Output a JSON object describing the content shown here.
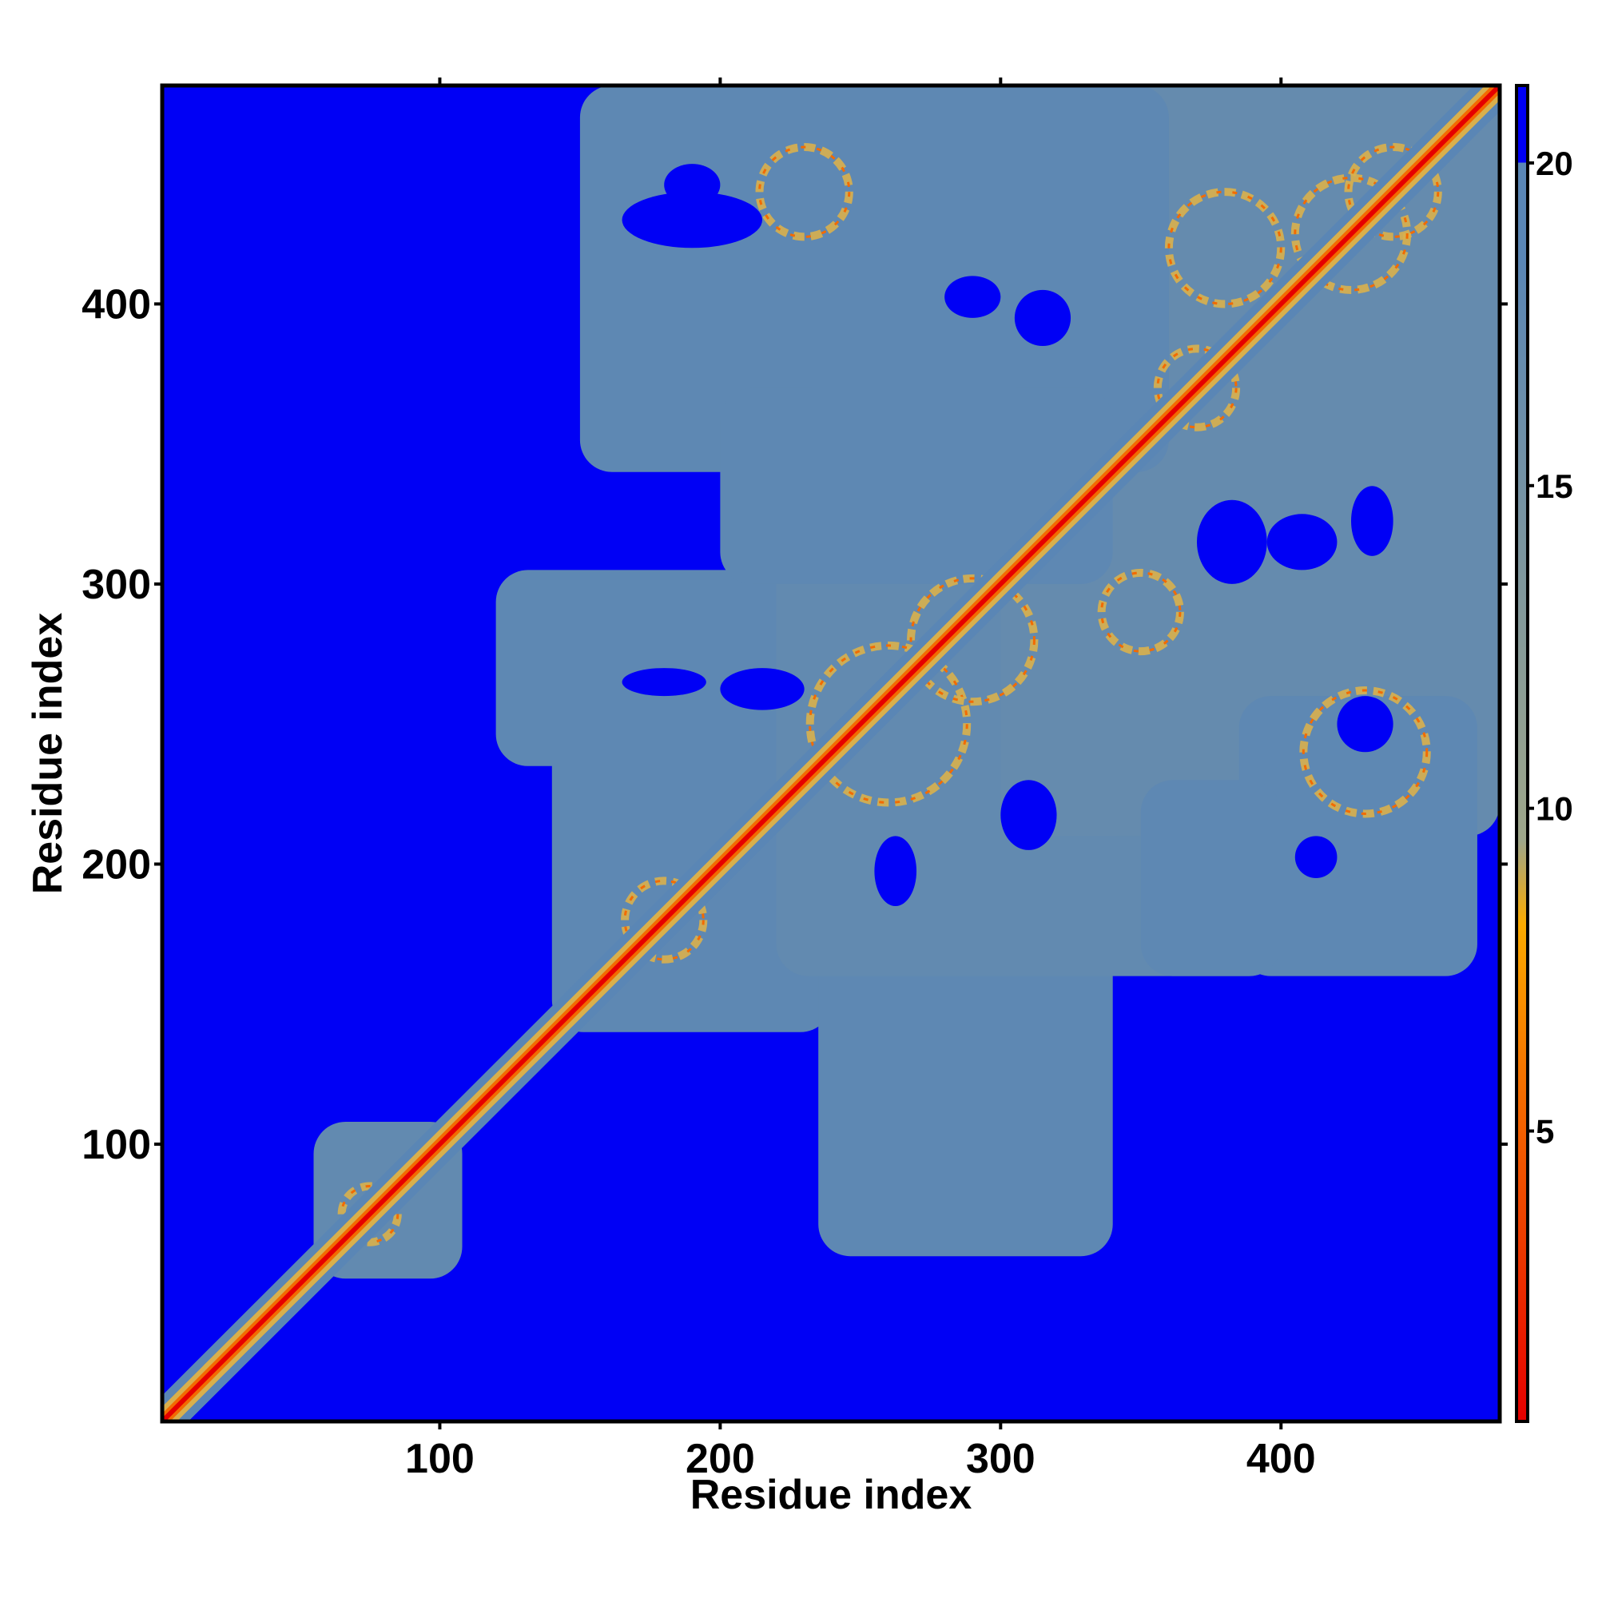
{
  "chart_data": {
    "type": "heatmap",
    "title": "",
    "xlabel": "Residue index",
    "ylabel": "Residue index",
    "xlim": [
      1,
      478
    ],
    "ylim": [
      1,
      478
    ],
    "x_ticks": [
      100,
      200,
      300,
      400
    ],
    "y_ticks": [
      100,
      200,
      300,
      400
    ],
    "colorbar": {
      "range": [
        0.5,
        21.2
      ],
      "ticks": [
        5,
        10,
        15,
        20
      ],
      "stops": [
        {
          "value": 0.5,
          "color": "#e50000"
        },
        {
          "value": 5.5,
          "color": "#f36a00"
        },
        {
          "value": 8.2,
          "color": "#fbab00"
        },
        {
          "value": 9.5,
          "color": "#9ea68a"
        },
        {
          "value": 18.5,
          "color": "#5a86b5"
        },
        {
          "value": 20.0,
          "color": "#5a86b5"
        },
        {
          "value": 20.01,
          "color": "#0000f5"
        },
        {
          "value": 21.2,
          "color": "#0000f5"
        }
      ]
    },
    "background_value": 20.5,
    "colors": {
      "background": "#0000f5",
      "contact_region": "#5a86b5",
      "near": "#d9b04c",
      "close": "#f36a00",
      "diagonal": "#e50000"
    },
    "contact_regions": [
      {
        "x": [
          55,
          108
        ],
        "y": [
          52,
          108
        ],
        "value": 17.5
      },
      {
        "x": [
          140,
          240
        ],
        "y": [
          140,
          300
        ],
        "value": 18
      },
      {
        "x": [
          120,
          290
        ],
        "y": [
          235,
          305
        ],
        "value": 18
      },
      {
        "x": [
          235,
          340
        ],
        "y": [
          60,
          300
        ],
        "value": 18
      },
      {
        "x": [
          220,
          400
        ],
        "y": [
          160,
          360
        ],
        "value": 17.5
      },
      {
        "x": [
          300,
          478
        ],
        "y": [
          210,
          478
        ],
        "value": 17
      },
      {
        "x": [
          150,
          360
        ],
        "y": [
          340,
          478
        ],
        "value": 18
      },
      {
        "x": [
          200,
          340
        ],
        "y": [
          300,
          370
        ],
        "value": 18
      },
      {
        "x": [
          385,
          470
        ],
        "y": [
          160,
          260
        ],
        "value": 18
      },
      {
        "x": [
          350,
          400
        ],
        "y": [
          160,
          230
        ],
        "value": 18
      }
    ],
    "holes": [
      {
        "x": [
          280,
          300
        ],
        "y": [
          395,
          410
        ]
      },
      {
        "x": [
          305,
          325
        ],
        "y": [
          385,
          405
        ]
      },
      {
        "x": [
          165,
          215
        ],
        "y": [
          420,
          440
        ]
      },
      {
        "x": [
          300,
          320
        ],
        "y": [
          205,
          230
        ]
      },
      {
        "x": [
          370,
          395
        ],
        "y": [
          300,
          330
        ]
      },
      {
        "x": [
          395,
          420
        ],
        "y": [
          305,
          325
        ]
      },
      {
        "x": [
          425,
          440
        ],
        "y": [
          310,
          335
        ]
      },
      {
        "x": [
          255,
          270
        ],
        "y": [
          185,
          210
        ]
      },
      {
        "x": [
          405,
          420
        ],
        "y": [
          195,
          210
        ]
      },
      {
        "x": [
          165,
          195
        ],
        "y": [
          260,
          270
        ]
      },
      {
        "x": [
          200,
          230
        ],
        "y": [
          255,
          270
        ]
      },
      {
        "x": [
          420,
          440
        ],
        "y": [
          240,
          260
        ]
      },
      {
        "x": [
          180,
          200
        ],
        "y": [
          435,
          450
        ]
      }
    ],
    "contact_arcs": [
      {
        "center": [
          260,
          250
        ],
        "radius": 28,
        "value": 9
      },
      {
        "center": [
          290,
          280
        ],
        "radius": 22,
        "value": 9
      },
      {
        "center": [
          75,
          75
        ],
        "radius": 10,
        "value": 9
      },
      {
        "center": [
          180,
          180
        ],
        "radius": 14,
        "value": 9
      },
      {
        "center": [
          440,
          440
        ],
        "radius": 16,
        "value": 9
      },
      {
        "center": [
          425,
          425
        ],
        "radius": 20,
        "value": 9
      },
      {
        "center": [
          380,
          420
        ],
        "radius": 20,
        "value": 9
      },
      {
        "center": [
          430,
          240
        ],
        "radius": 22,
        "value": 9
      },
      {
        "center": [
          370,
          370
        ],
        "radius": 14,
        "value": 9
      },
      {
        "center": [
          230,
          440
        ],
        "radius": 16,
        "value": 9
      },
      {
        "center": [
          350,
          290
        ],
        "radius": 14,
        "value": 9
      }
    ]
  }
}
